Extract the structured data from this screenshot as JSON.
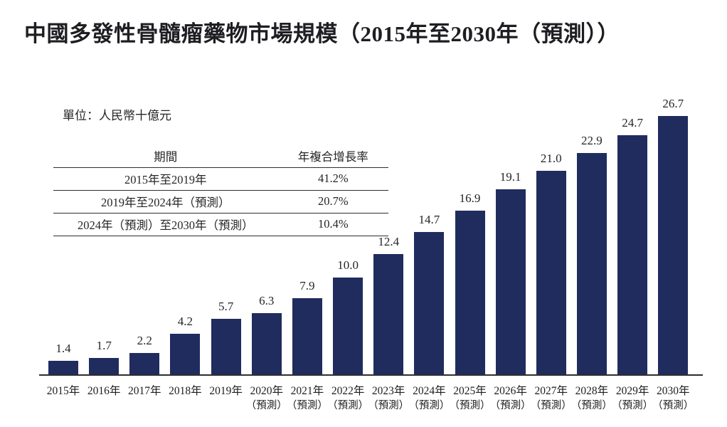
{
  "title": "中國多發性骨髓瘤藥物市場規模（2015年至2030年（預測））",
  "unit_label": "單位：人民幣十億元",
  "cagr_table": {
    "headers": [
      "期間",
      "年複合增長率"
    ],
    "rows": [
      {
        "period": "2015年至2019年",
        "rate": "41.2%"
      },
      {
        "period": "2019年至2024年（預測）",
        "rate": "20.7%"
      },
      {
        "period": "2024年（預測）至2030年（預測）",
        "rate": "10.4%"
      }
    ]
  },
  "colors": {
    "bar": "#202c5e",
    "text": "#262626",
    "line": "#2e2e2e"
  },
  "chart_data": {
    "type": "bar",
    "title": "中國多發性骨髓瘤藥物市場規模（2015年至2030年（預測））",
    "unit": "人民幣十億元",
    "categories": [
      {
        "label": "2015年",
        "sub": ""
      },
      {
        "label": "2016年",
        "sub": ""
      },
      {
        "label": "2017年",
        "sub": ""
      },
      {
        "label": "2018年",
        "sub": ""
      },
      {
        "label": "2019年",
        "sub": ""
      },
      {
        "label": "2020年",
        "sub": "（預測）"
      },
      {
        "label": "2021年",
        "sub": "（預測）"
      },
      {
        "label": "2022年",
        "sub": "（預測）"
      },
      {
        "label": "2023年",
        "sub": "（預測）"
      },
      {
        "label": "2024年",
        "sub": "（預測）"
      },
      {
        "label": "2025年",
        "sub": "（預測）"
      },
      {
        "label": "2026年",
        "sub": "（預測）"
      },
      {
        "label": "2027年",
        "sub": "（預測）"
      },
      {
        "label": "2028年",
        "sub": "（預測）"
      },
      {
        "label": "2029年",
        "sub": "（預測）"
      },
      {
        "label": "2030年",
        "sub": "（預測）"
      }
    ],
    "values": [
      1.4,
      1.7,
      2.2,
      4.2,
      5.7,
      6.3,
      7.9,
      10.0,
      12.4,
      14.7,
      16.9,
      19.1,
      21.0,
      22.9,
      24.7,
      26.7
    ],
    "value_labels": [
      "1.4",
      "1.7",
      "2.2",
      "4.2",
      "5.7",
      "6.3",
      "7.9",
      "10.0",
      "12.4",
      "14.7",
      "16.9",
      "19.1",
      "21.0",
      "22.9",
      "24.7",
      "26.7"
    ],
    "xlabel": "",
    "ylabel": "人民幣十億元",
    "ylim": [
      0,
      28
    ],
    "grid": false,
    "legend": "none",
    "bar_color": "#202c5e"
  }
}
